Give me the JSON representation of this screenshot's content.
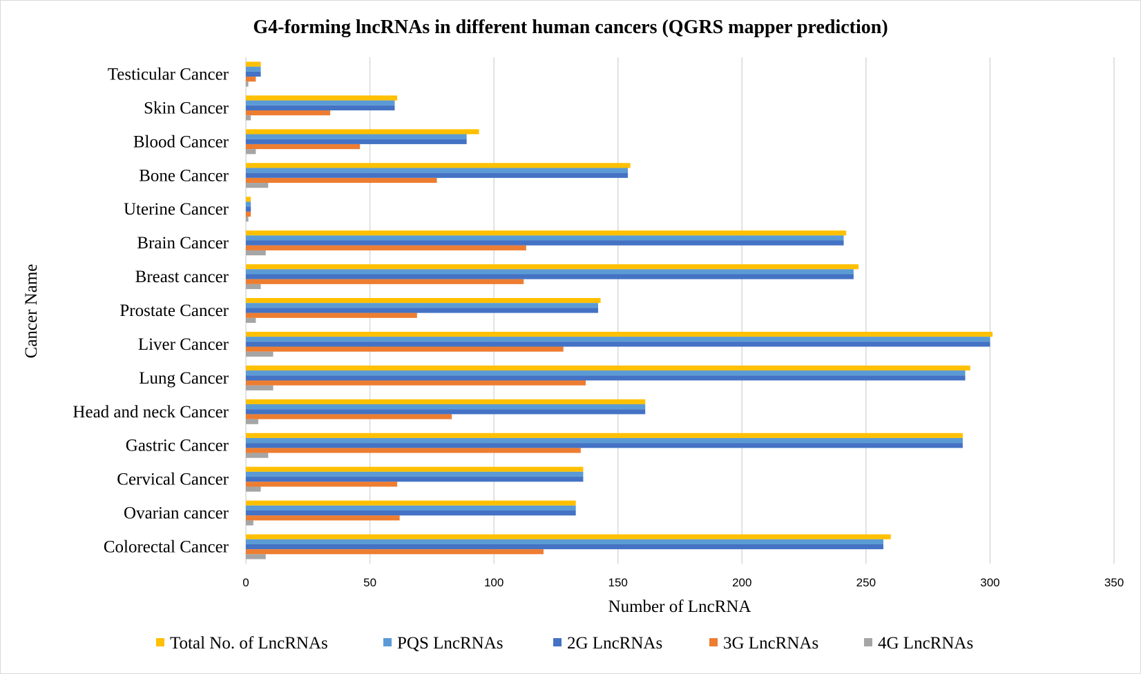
{
  "chart_data": {
    "type": "bar",
    "orientation": "horizontal",
    "title": "G4-forming lncRNAs in different human cancers (QGRS mapper prediction)",
    "xlabel": "Number of LncRNA",
    "ylabel": "Cancer Name",
    "xlim": [
      0,
      350
    ],
    "xticks": [
      "0",
      "50",
      "100",
      "150",
      "200",
      "250",
      "300",
      "350"
    ],
    "grid": true,
    "legend_position": "bottom",
    "categories": [
      "Testicular Cancer",
      "Skin Cancer",
      "Blood Cancer",
      "Bone Cancer",
      "Uterine Cancer",
      "Brain Cancer",
      "Breast cancer",
      "Prostate Cancer",
      "Liver Cancer",
      "Lung Cancer",
      "Head and neck Cancer",
      "Gastric Cancer",
      "Cervical Cancer",
      "Ovarian cancer",
      "Colorectal Cancer"
    ],
    "series": [
      {
        "name": "Total No. of LncRNAs",
        "color": "#FFC000",
        "values": [
          6,
          61,
          94,
          155,
          2,
          242,
          247,
          143,
          301,
          292,
          161,
          289,
          136,
          133,
          260
        ]
      },
      {
        "name": "PQS LncRNAs",
        "color": "#5B9BD5",
        "values": [
          6,
          60,
          89,
          154,
          2,
          241,
          245,
          142,
          300,
          290,
          161,
          289,
          136,
          133,
          257
        ]
      },
      {
        "name": "2G LncRNAs",
        "color": "#4472C4",
        "values": [
          6,
          60,
          89,
          154,
          2,
          241,
          245,
          142,
          300,
          290,
          161,
          289,
          136,
          133,
          257
        ]
      },
      {
        "name": "3G LncRNAs",
        "color": "#ED7D31",
        "values": [
          4,
          34,
          46,
          77,
          2,
          113,
          112,
          69,
          128,
          137,
          83,
          135,
          61,
          62,
          120
        ]
      },
      {
        "name": "4G LncRNAs",
        "color": "#A5A5A5",
        "values": [
          1,
          2,
          4,
          9,
          1,
          8,
          6,
          4,
          11,
          11,
          5,
          9,
          6,
          3,
          8
        ]
      }
    ]
  }
}
